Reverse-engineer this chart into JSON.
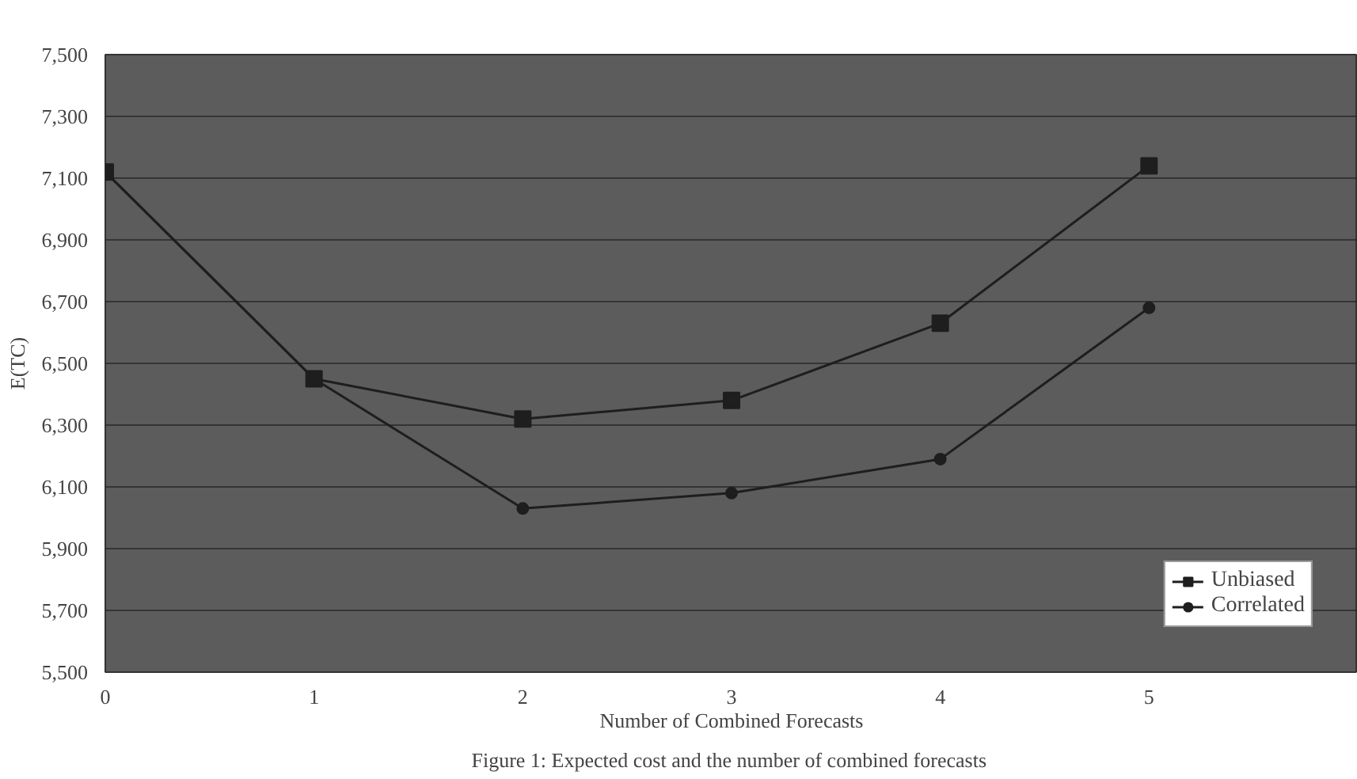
{
  "chart_data": {
    "type": "line",
    "xlabel": "Number of Combined Forecasts",
    "ylabel": "E(TC)",
    "annotations": [
      "Figure 1:  Expected cost and the number of combined forecasts"
    ],
    "x": [
      0,
      1,
      2,
      3,
      4,
      5
    ],
    "series": [
      {
        "name": "Unbiased",
        "color": "#1e1e1e",
        "marker": "square",
        "values": [
          7120,
          6450,
          6320,
          6380,
          6630,
          7140
        ]
      },
      {
        "name": "Correlated",
        "color": "#1e1e1e",
        "marker": "circle",
        "values": [
          7120,
          6450,
          6030,
          6080,
          6190,
          6680
        ]
      }
    ],
    "xlim": [
      0,
      6
    ],
    "xticks": [
      0,
      1,
      2,
      3,
      4,
      5
    ],
    "ylim": [
      5500,
      7500
    ],
    "yticks": [
      {
        "value": 5500,
        "label": "5,500"
      },
      {
        "value": 5700,
        "label": "5,700"
      },
      {
        "value": 5900,
        "label": "5,900"
      },
      {
        "value": 6100,
        "label": "6,100"
      },
      {
        "value": 6300,
        "label": "6,300"
      },
      {
        "value": 6500,
        "label": "6,500"
      },
      {
        "value": 6700,
        "label": "6,700"
      },
      {
        "value": 6900,
        "label": "6,900"
      },
      {
        "value": 7100,
        "label": "7,100"
      },
      {
        "value": 7300,
        "label": "7,300"
      },
      {
        "value": 7500,
        "label": "7,500"
      }
    ],
    "grid": "y",
    "legend": "bottom right",
    "line_style": "solid"
  }
}
